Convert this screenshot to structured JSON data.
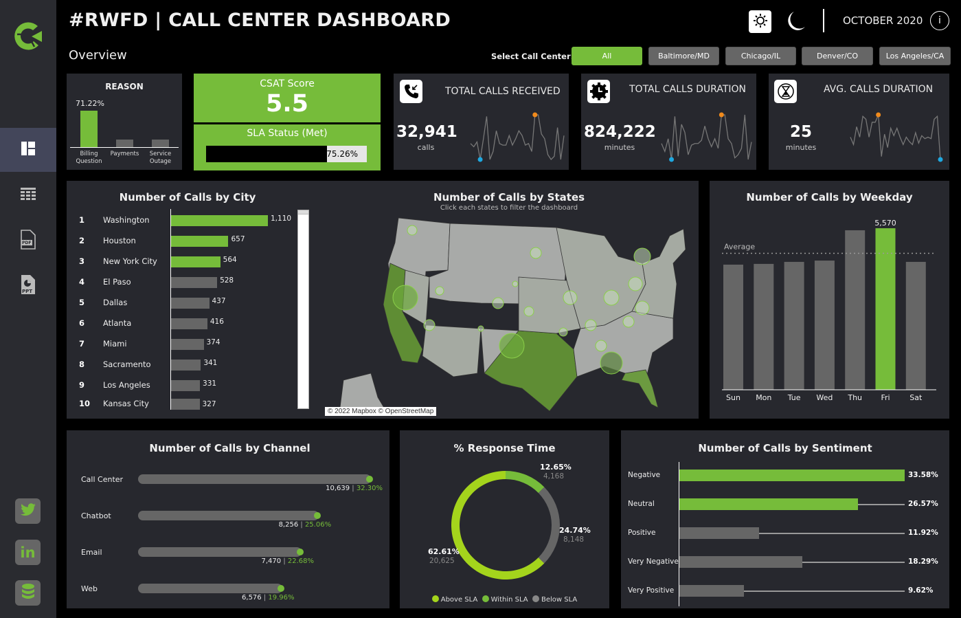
{
  "header": {
    "title": "#RWFD | CALL CENTER DASHBOARD",
    "subtitle": "Overview",
    "date": "OCTOBER 2020",
    "light_mode_icon": "sun-icon",
    "dark_mode_icon": "moon-icon",
    "info_icon": "info-icon",
    "filter_label": "Select Call Center:",
    "filters": [
      {
        "label": "All",
        "active": true
      },
      {
        "label": "Baltimore/MD",
        "active": false
      },
      {
        "label": "Chicago/IL",
        "active": false
      },
      {
        "label": "Denver/CO",
        "active": false
      },
      {
        "label": "Los Angeles/CA",
        "active": false
      }
    ]
  },
  "sidebar": {
    "logo": "c-logo-icon",
    "items": [
      {
        "icon": "dashboard-icon",
        "active": true
      },
      {
        "icon": "table-icon",
        "active": false
      },
      {
        "icon": "pdf-icon",
        "label": "PDF",
        "active": false
      },
      {
        "icon": "ppt-icon",
        "label": "PPT",
        "active": false
      }
    ],
    "social": [
      {
        "icon": "twitter-icon"
      },
      {
        "icon": "linkedin-icon",
        "label": "in"
      },
      {
        "icon": "database-icon"
      }
    ]
  },
  "colors": {
    "accent": "#76bc3a",
    "lime": "#a4d41c",
    "gray_bar": "#666666",
    "panel": "#27282e",
    "spark_max": "#f08a1c",
    "spark_min": "#1ea8e0"
  },
  "reason": {
    "title": "REASON",
    "items": [
      {
        "label_1": "Billing",
        "label_2": "Question",
        "share": 71.22,
        "value_label": "71.22%",
        "highlight": true
      },
      {
        "label_1": "Payments",
        "label_2": "",
        "share": 14.4,
        "highlight": false
      },
      {
        "label_1": "Service",
        "label_2": "Outage",
        "share": 14.4,
        "highlight": false
      }
    ]
  },
  "csat": {
    "title": "CSAT Score",
    "value": "5.5"
  },
  "sla": {
    "title": "SLA Status (Met)",
    "value_label": "75.26%",
    "percent": 75.26
  },
  "kpis": [
    {
      "title": "TOTAL CALLS RECEIVED",
      "value": "32,941",
      "unit": "calls",
      "icon": "incoming-call-icon",
      "spark": [
        45,
        43,
        46,
        35,
        48,
        62,
        35,
        40,
        53,
        45,
        44,
        44,
        50,
        44,
        48,
        53,
        50,
        44,
        45,
        40,
        63,
        63,
        51,
        48,
        38,
        35,
        37,
        55,
        35,
        50
      ]
    },
    {
      "title": "TOTAL CALLS DURATION",
      "value": "824,222",
      "unit": "minutes",
      "icon": "clock-gear-icon",
      "spark": [
        45,
        40,
        48,
        35,
        62,
        37,
        57,
        52,
        38,
        44,
        45,
        45,
        47,
        56,
        48,
        43,
        48,
        42,
        63,
        63,
        48,
        45,
        36,
        38,
        42,
        63,
        35,
        46
      ]
    },
    {
      "title": "AVG. CALLS DURATION",
      "value": "25",
      "unit": "minutes",
      "icon": "hourglass-icon",
      "spark": [
        48,
        43,
        55,
        48,
        62,
        60,
        48,
        58,
        58,
        63,
        35,
        50,
        41,
        54,
        49,
        54,
        48,
        43,
        48,
        45,
        43,
        51,
        44,
        49,
        47,
        48,
        47,
        60,
        62,
        33
      ]
    }
  ],
  "city_chart": {
    "title": "Number of Calls by City",
    "rows": [
      {
        "rank": "1",
        "city": "Washington",
        "value": 1110,
        "label": "1,110",
        "highlight": true
      },
      {
        "rank": "2",
        "city": "Houston",
        "value": 657,
        "label": "657",
        "highlight": true
      },
      {
        "rank": "3",
        "city": "New York City",
        "value": 564,
        "label": "564",
        "highlight": true
      },
      {
        "rank": "4",
        "city": "El Paso",
        "value": 528,
        "label": "528",
        "highlight": false
      },
      {
        "rank": "5",
        "city": "Dallas",
        "value": 437,
        "label": "437",
        "highlight": false
      },
      {
        "rank": "6",
        "city": "Atlanta",
        "value": 416,
        "label": "416",
        "highlight": false
      },
      {
        "rank": "7",
        "city": "Miami",
        "value": 374,
        "label": "374",
        "highlight": false
      },
      {
        "rank": "8",
        "city": "Sacramento",
        "value": 341,
        "label": "341",
        "highlight": false
      },
      {
        "rank": "9",
        "city": "Los Angeles",
        "value": 331,
        "label": "331",
        "highlight": false
      },
      {
        "rank": "10",
        "city": "Kansas City",
        "value": 327,
        "label": "327",
        "highlight": false
      }
    ]
  },
  "map": {
    "title": "Number of Calls by States",
    "subtitle": "Click each states to filter the dashboard",
    "attribution": "© 2022 Mapbox © OpenStreetMap"
  },
  "chart_data": [
    {
      "type": "bar",
      "title": "Number of Calls by Weekday",
      "categories": [
        "Sun",
        "Mon",
        "Tue",
        "Wed",
        "Thu",
        "Fri",
        "Sat"
      ],
      "values": [
        4315,
        4340,
        4410,
        4455,
        5500,
        5570,
        4410
      ],
      "highlight": "Fri",
      "data_labels": {
        "Fri": "5,570"
      },
      "reference_line": {
        "label": "Average",
        "value": 4705
      },
      "ylim": [
        0,
        5570
      ]
    },
    {
      "type": "bar",
      "orientation": "horizontal",
      "title": "Number of Calls by Channel",
      "categories": [
        "Call Center",
        "Chatbot",
        "Email",
        "Web"
      ],
      "values": [
        10639,
        8256,
        7470,
        6576
      ],
      "value_labels": [
        "10,639",
        "8,256",
        "7,470",
        "6,576"
      ],
      "percent_labels": [
        "32.30%",
        "25.06%",
        "22.68%",
        "19.96%"
      ]
    },
    {
      "type": "pie",
      "title": "% Response Time",
      "donut": true,
      "slices": [
        {
          "name": "Within SLA",
          "value": 4168,
          "value_label": "4,168",
          "percent_label": "12.65%",
          "color": "#76bc3a"
        },
        {
          "name": "Below SLA",
          "value": 8148,
          "value_label": "8,148",
          "percent_label": "24.74%",
          "color": "#666666"
        },
        {
          "name": "Above SLA",
          "value": 20625,
          "value_label": "20,625",
          "percent_label": "62.61%",
          "color": "#a4d41c"
        }
      ],
      "legend": [
        "Above SLA",
        "Within SLA",
        "Below SLA"
      ],
      "legend_placement": "bottom"
    },
    {
      "type": "bar",
      "orientation": "horizontal",
      "title": "Number of Calls by Sentiment",
      "categories": [
        "Negative",
        "Neutral",
        "Positive",
        "Very Negative",
        "Very Positive"
      ],
      "values": [
        33.58,
        26.57,
        11.92,
        18.29,
        9.62
      ],
      "labels": [
        "33.58%",
        "26.57%",
        "11.92%",
        "18.29%",
        "9.62%"
      ],
      "highlight": [
        "Negative",
        "Neutral"
      ]
    }
  ]
}
